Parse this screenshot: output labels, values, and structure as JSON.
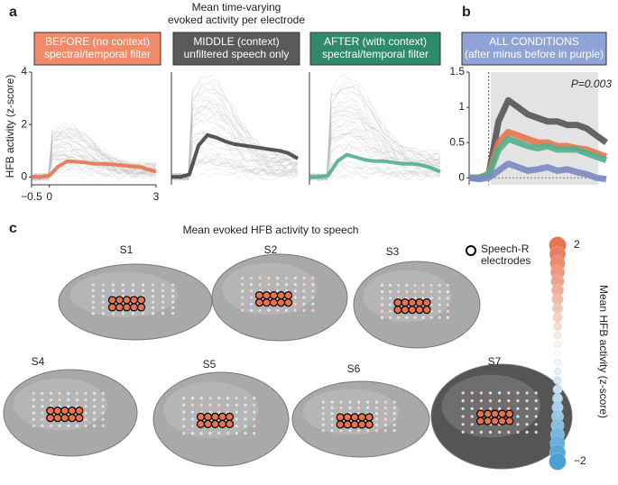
{
  "panel_labels": [
    "a",
    "b",
    "c"
  ],
  "figure_a_title": [
    "Mean time-varying",
    "evoked activity per electrode"
  ],
  "y_label": "HFB activity (z-score)",
  "chart_data": [
    {
      "type": "line",
      "title": [
        "BEFORE (no context)",
        "spectral/temporal filter"
      ],
      "box_color": "#f08a68",
      "x": [
        -0.5,
        -0.25,
        0,
        0.25,
        0.5,
        0.75,
        1,
        1.25,
        1.5,
        1.75,
        2,
        2.25,
        2.5,
        2.75,
        3
      ],
      "series": [
        {
          "color": "#e8744f",
          "values": [
            0,
            0,
            0.05,
            0.4,
            0.6,
            0.58,
            0.55,
            0.5,
            0.5,
            0.48,
            0.45,
            0.42,
            0.4,
            0.3,
            0.2
          ]
        }
      ],
      "xlim": [
        -0.5,
        3
      ],
      "xticks": [
        {
          "value": -0.5,
          "label": "−0.5"
        },
        0,
        3
      ],
      "ylim": [
        -0.3,
        4
      ],
      "yticks": [
        0,
        2,
        4
      ]
    },
    {
      "type": "line",
      "title": [
        "MIDDLE (context)",
        "unfiltered speech only"
      ],
      "box_color": "#5a5a5a",
      "x": [
        -0.5,
        -0.25,
        0,
        0.25,
        0.5,
        0.75,
        1,
        1.25,
        1.5,
        1.75,
        2,
        2.25,
        2.5,
        2.75,
        3
      ],
      "series": [
        {
          "color": "#444444",
          "values": [
            0,
            0,
            0.1,
            1.2,
            1.6,
            1.5,
            1.35,
            1.25,
            1.2,
            1.15,
            1.1,
            1.05,
            1.0,
            0.9,
            0.7
          ]
        }
      ],
      "xlim": [
        -0.5,
        3
      ],
      "ylim": [
        -0.3,
        4
      ]
    },
    {
      "type": "line",
      "title": [
        "AFTER (with context)",
        "spectral/temporal filter"
      ],
      "box_color": "#2f8a6a",
      "x": [
        -0.5,
        -0.25,
        0,
        0.25,
        0.5,
        0.75,
        1,
        1.25,
        1.5,
        1.75,
        2,
        2.25,
        2.5,
        2.75,
        3
      ],
      "series": [
        {
          "color": "#4fb08c",
          "values": [
            0,
            0,
            0.05,
            0.6,
            0.85,
            0.75,
            0.65,
            0.6,
            0.6,
            0.55,
            0.5,
            0.5,
            0.45,
            0.35,
            0.2
          ]
        }
      ],
      "xlim": [
        -0.5,
        3
      ],
      "ylim": [
        -0.3,
        4
      ]
    },
    {
      "type": "line",
      "title": [
        "ALL CONDITIONS",
        "(after minus before in purple)"
      ],
      "box_color": "#8fa3d6",
      "annotation": "P=0.003",
      "shaded_x": [
        0.05,
        2.8
      ],
      "x": [
        -0.5,
        -0.25,
        0,
        0.25,
        0.5,
        0.75,
        1,
        1.25,
        1.5,
        1.75,
        2,
        2.25,
        2.5,
        2.75,
        3
      ],
      "series": [
        {
          "color": "#555555",
          "values": [
            0,
            0,
            0.05,
            0.8,
            1.1,
            1.0,
            0.9,
            0.85,
            0.8,
            0.8,
            0.75,
            0.75,
            0.7,
            0.6,
            0.5
          ]
        },
        {
          "color": "#e8744f",
          "values": [
            0,
            0,
            0.05,
            0.5,
            0.65,
            0.6,
            0.55,
            0.5,
            0.5,
            0.45,
            0.45,
            0.42,
            0.4,
            0.35,
            0.3
          ]
        },
        {
          "color": "#4fb08c",
          "values": [
            0,
            0,
            0.04,
            0.4,
            0.55,
            0.5,
            0.45,
            0.42,
            0.45,
            0.4,
            0.4,
            0.4,
            0.35,
            0.3,
            0.25
          ]
        },
        {
          "color": "#7b88bf",
          "values": [
            0,
            -0.02,
            0,
            0.1,
            0.2,
            0.15,
            0.1,
            0.12,
            0.15,
            0.1,
            0.12,
            0.08,
            0.05,
            0,
            -0.02
          ]
        }
      ],
      "xlim": [
        -0.5,
        3
      ],
      "ylim": [
        -0.1,
        1.5
      ],
      "yticks": [
        1.5,
        1,
        0.5,
        0
      ]
    }
  ],
  "panel_c": {
    "title": "Mean evoked HFB activity to speech",
    "subjects": [
      "S1",
      "S2",
      "S3",
      "S4",
      "S5",
      "S6",
      "S7"
    ],
    "legend": [
      "Speech-R",
      "electrodes"
    ],
    "colorbar": {
      "label": "Mean HFB activity (z-score)",
      "ylim": [
        -2,
        2
      ],
      "ticks": [
        2,
        {
          "value": -2,
          "label": "−2"
        }
      ],
      "colors": [
        "#e8744f",
        "#ffffff",
        "#4a9fd4"
      ]
    }
  }
}
